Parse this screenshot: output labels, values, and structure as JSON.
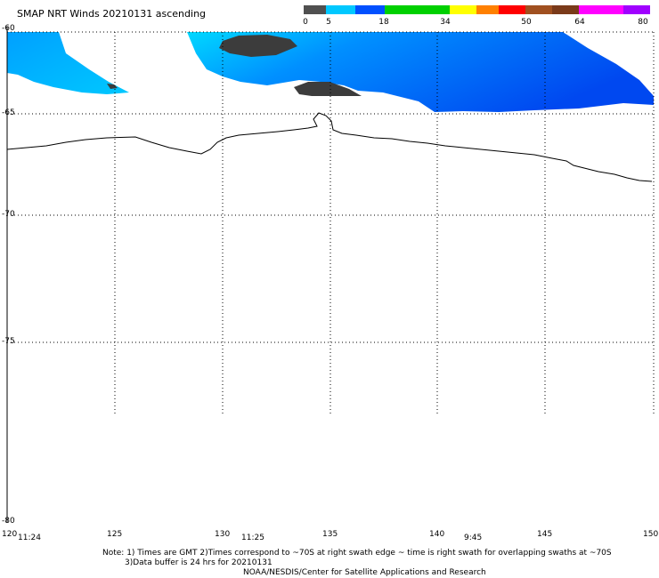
{
  "title": "SMAP NRT Winds 20210131 ascending",
  "legend": {
    "ticks": [
      "0",
      "5",
      "18",
      "34",
      "50",
      "64",
      "80"
    ],
    "segments": [
      {
        "color": "#505050"
      },
      {
        "color": "#00c8ff"
      },
      {
        "color": "#0050ff"
      },
      {
        "color": "#00d000"
      },
      {
        "color": "#ffff00"
      },
      {
        "color": "#ff8000"
      },
      {
        "color": "#ff0000"
      },
      {
        "color": "#a05020"
      },
      {
        "color": "#7a3a1a"
      },
      {
        "color": "#ff00ff"
      },
      {
        "color": "#a000ff"
      }
    ]
  },
  "map": {
    "lat_labels": [
      "-60",
      "-65",
      "-70",
      "-75",
      "-80"
    ],
    "lon_labels": [
      "120",
      "125",
      "130",
      "135",
      "140",
      "145",
      "150"
    ],
    "time_labels": [
      "11:24",
      "11:25",
      "9:45"
    ]
  },
  "notes": [
    "Note: 1) Times are GMT 2)Times correspond to ~70S at right swath edge ~ time is right swath for overlapping swaths at ~70S",
    "3)Data buffer is 24 hrs for 20210131",
    "NOAA/NESDIS/Center for Satellite Applications and Research"
  ],
  "colors": {
    "wind_low": "#00c8ff",
    "wind_mid": "#0050ff",
    "rain_flag": "#3c3c3c",
    "coastline": "#000000"
  }
}
